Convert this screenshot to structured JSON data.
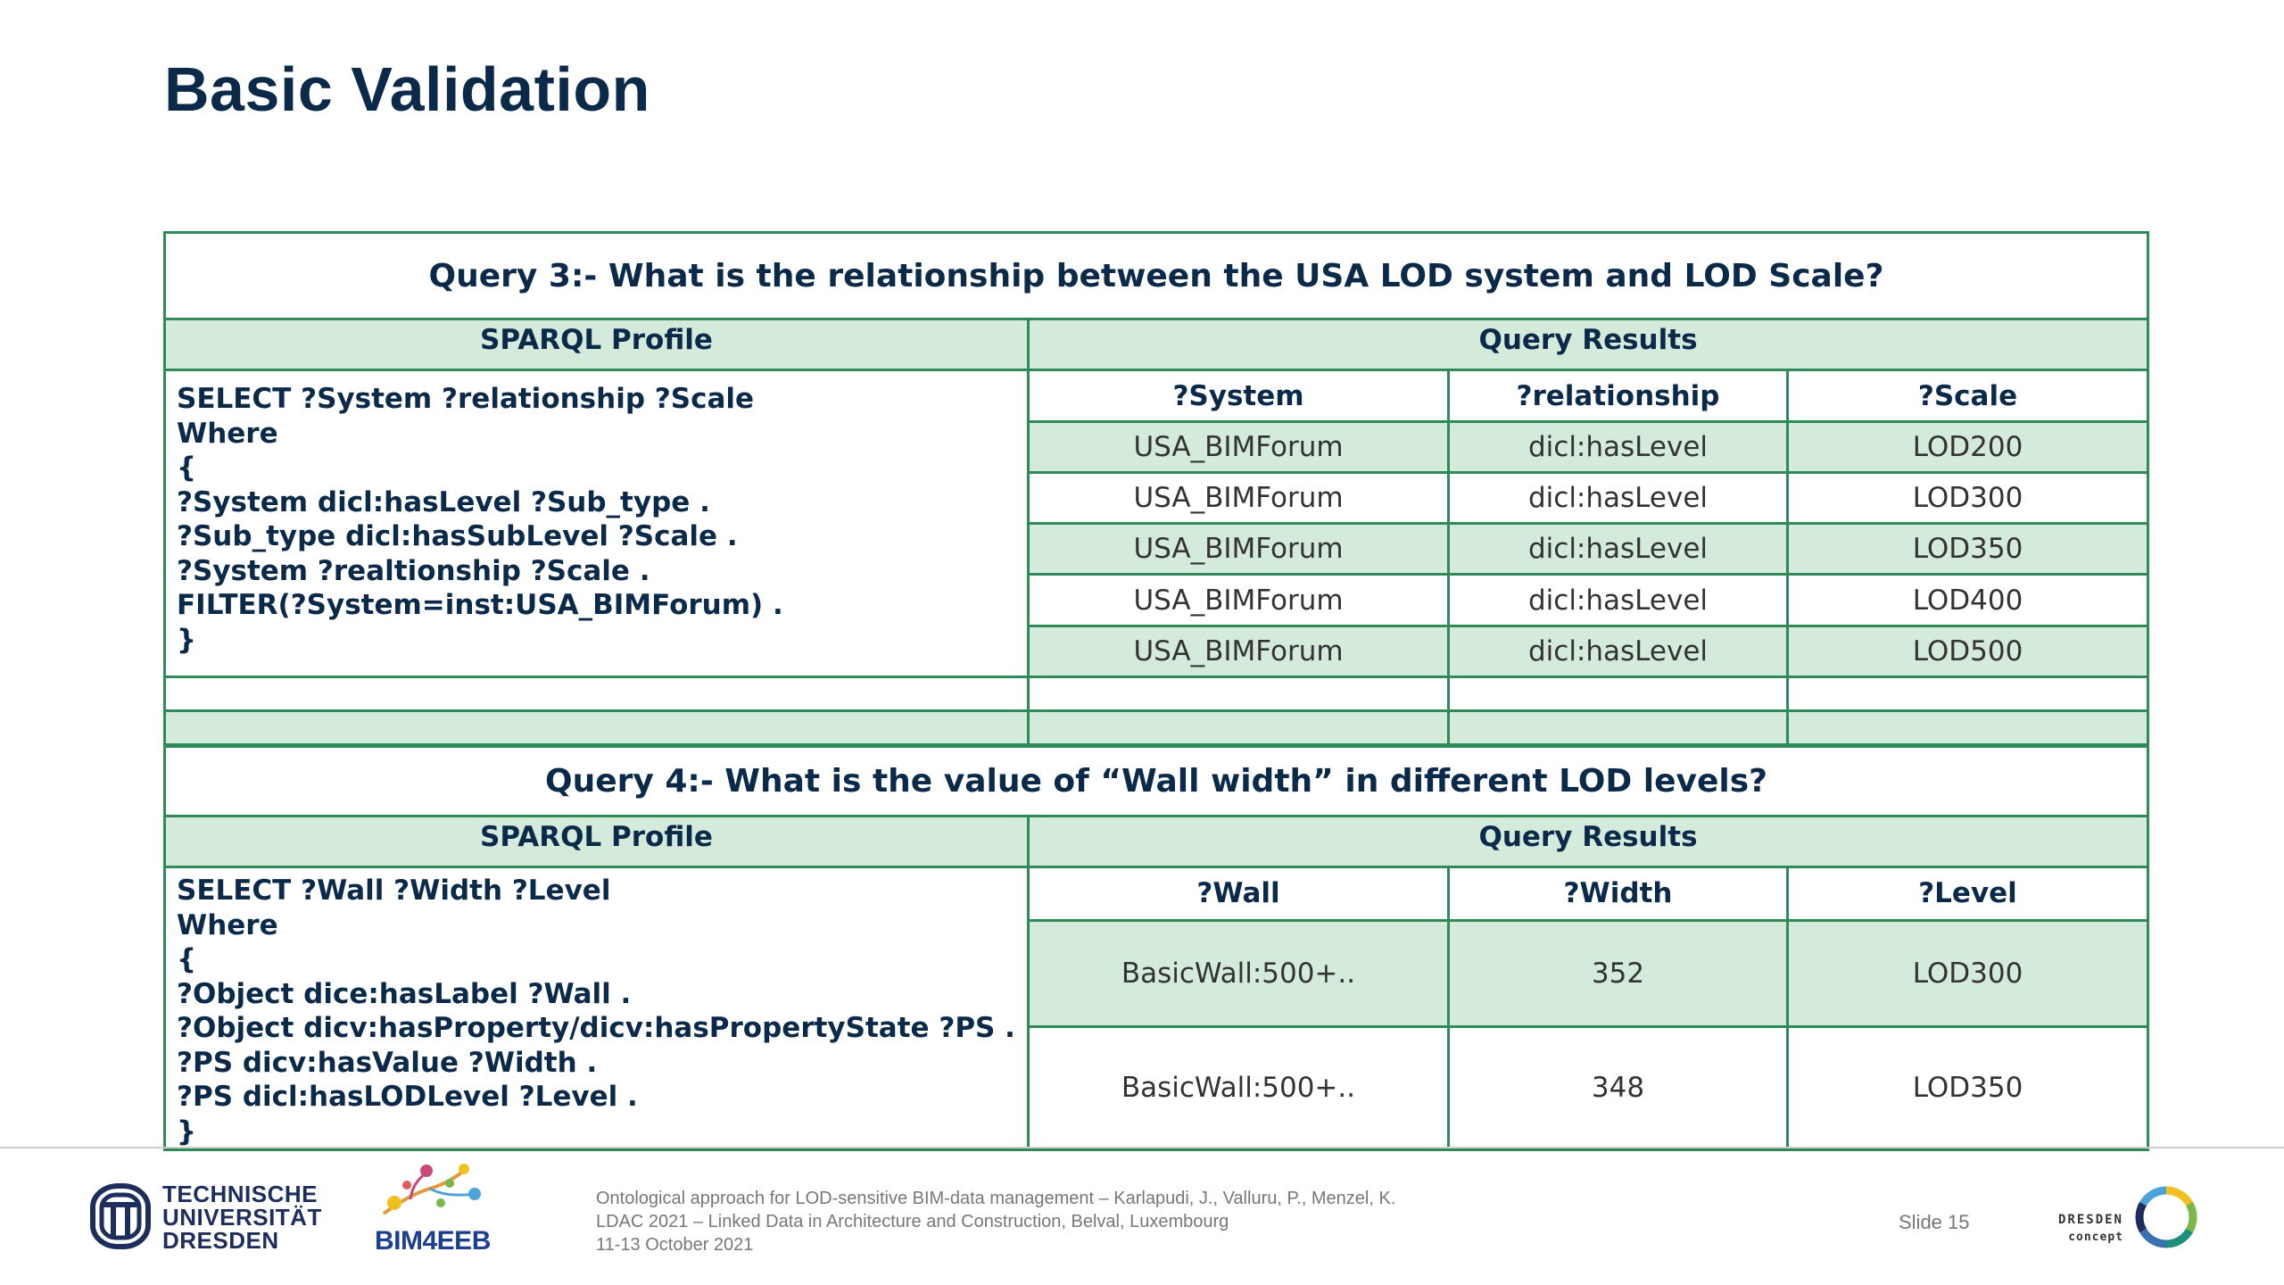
{
  "page": {
    "title": "Basic Validation"
  },
  "query3": {
    "title": "Query 3:- What is the relationship between the USA LOD system and LOD Scale?",
    "sparql_header": "SPARQL Profile",
    "results_header": "Query Results",
    "sparql": "SELECT ?System ?relationship ?Scale\nWhere\n{\n?System dicl:hasLevel ?Sub_type .\n?Sub_type dicl:hasSubLevel ?Scale .\n?System ?realtionship ?Scale .\nFILTER(?System=inst:USA_BIMForum) .\n}",
    "columns": [
      "?System",
      "?relationship",
      "?Scale"
    ],
    "rows": [
      [
        "USA_BIMForum",
        "dicl:hasLevel",
        "LOD200"
      ],
      [
        "USA_BIMForum",
        "dicl:hasLevel",
        "LOD300"
      ],
      [
        "USA_BIMForum",
        "dicl:hasLevel",
        "LOD350"
      ],
      [
        "USA_BIMForum",
        "dicl:hasLevel",
        "LOD400"
      ],
      [
        "USA_BIMForum",
        "dicl:hasLevel",
        "LOD500"
      ]
    ]
  },
  "query4": {
    "title": "Query 4:- What is the value of “Wall width” in different LOD levels?",
    "sparql_header": "SPARQL Profile",
    "results_header": "Query Results",
    "sparql": "SELECT ?Wall ?Width ?Level\nWhere\n{\n?Object dice:hasLabel ?Wall .\n?Object dicv:hasProperty/dicv:hasPropertyState ?PS .\n?PS dicv:hasValue ?Width .\n?PS dicl:hasLODLevel ?Level .\n}",
    "columns": [
      "?Wall",
      "?Width",
      "?Level"
    ],
    "rows": [
      [
        "BasicWall:500+..",
        "352",
        "LOD300"
      ],
      [
        "BasicWall:500+..",
        "348",
        "LOD350"
      ]
    ]
  },
  "footer": {
    "tu_line1": "TECHNISCHE",
    "tu_line2": "UNIVERSITÄT",
    "tu_line3": "DRESDEN",
    "bim_label": "BIM4EEB",
    "cite_line1": "Ontological approach for LOD-sensitive BIM-data management – Karlapudi, J., Valluru, P., Menzel, K.",
    "cite_line2": "LDAC 2021 – Linked Data in Architecture and Construction, Belval, Luxembourg",
    "cite_line3": "11-13 October 2021",
    "slide": "Slide 15",
    "dresden_line1": "DRESDEN",
    "dresden_line2": "concept"
  },
  "colors": {
    "accent_green": "#2e8b57",
    "shade_green": "#d4eadb",
    "navy": "#0b2a4a"
  }
}
